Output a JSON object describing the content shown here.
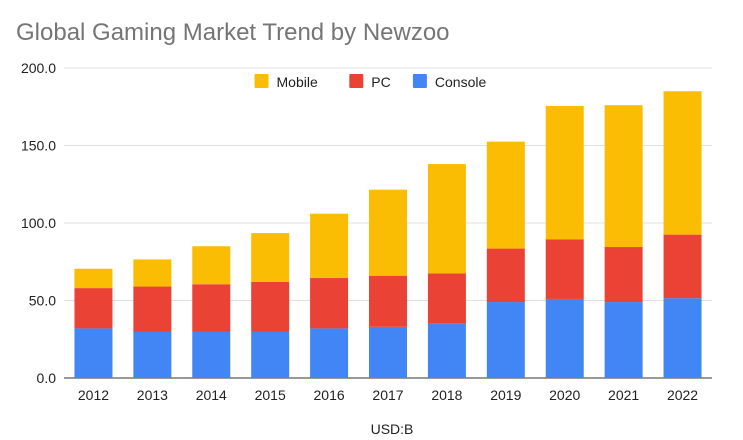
{
  "chart_data": {
    "type": "bar",
    "stacked": true,
    "title": "Global Gaming Market Trend by Newzoo",
    "xlabel": "USD:B",
    "ylabel": "",
    "ylim": [
      0,
      200
    ],
    "yticks": [
      "0.0",
      "50.0",
      "100.0",
      "150.0",
      "200.0"
    ],
    "ytick_values": [
      0,
      50,
      100,
      150,
      200
    ],
    "grid": true,
    "legend_position": "top",
    "categories": [
      "2012",
      "2013",
      "2014",
      "2015",
      "2016",
      "2017",
      "2018",
      "2019",
      "2020",
      "2021",
      "2022"
    ],
    "series": [
      {
        "name": "Console",
        "color": "#4285f4",
        "values": [
          32,
          30,
          30,
          30,
          32,
          33,
          35,
          49,
          51,
          49,
          51.5
        ]
      },
      {
        "name": "PC",
        "color": "#ea4335",
        "values": [
          26,
          29,
          30.5,
          32,
          32.5,
          33,
          32.5,
          34.5,
          38.5,
          35.5,
          41
        ]
      },
      {
        "name": "Mobile",
        "color": "#fbbc04",
        "values": [
          12.5,
          17.5,
          24.5,
          31.5,
          41.5,
          55.5,
          70.5,
          69,
          86,
          91.5,
          92.5
        ]
      }
    ],
    "legend_order": [
      "Mobile",
      "PC",
      "Console"
    ]
  }
}
